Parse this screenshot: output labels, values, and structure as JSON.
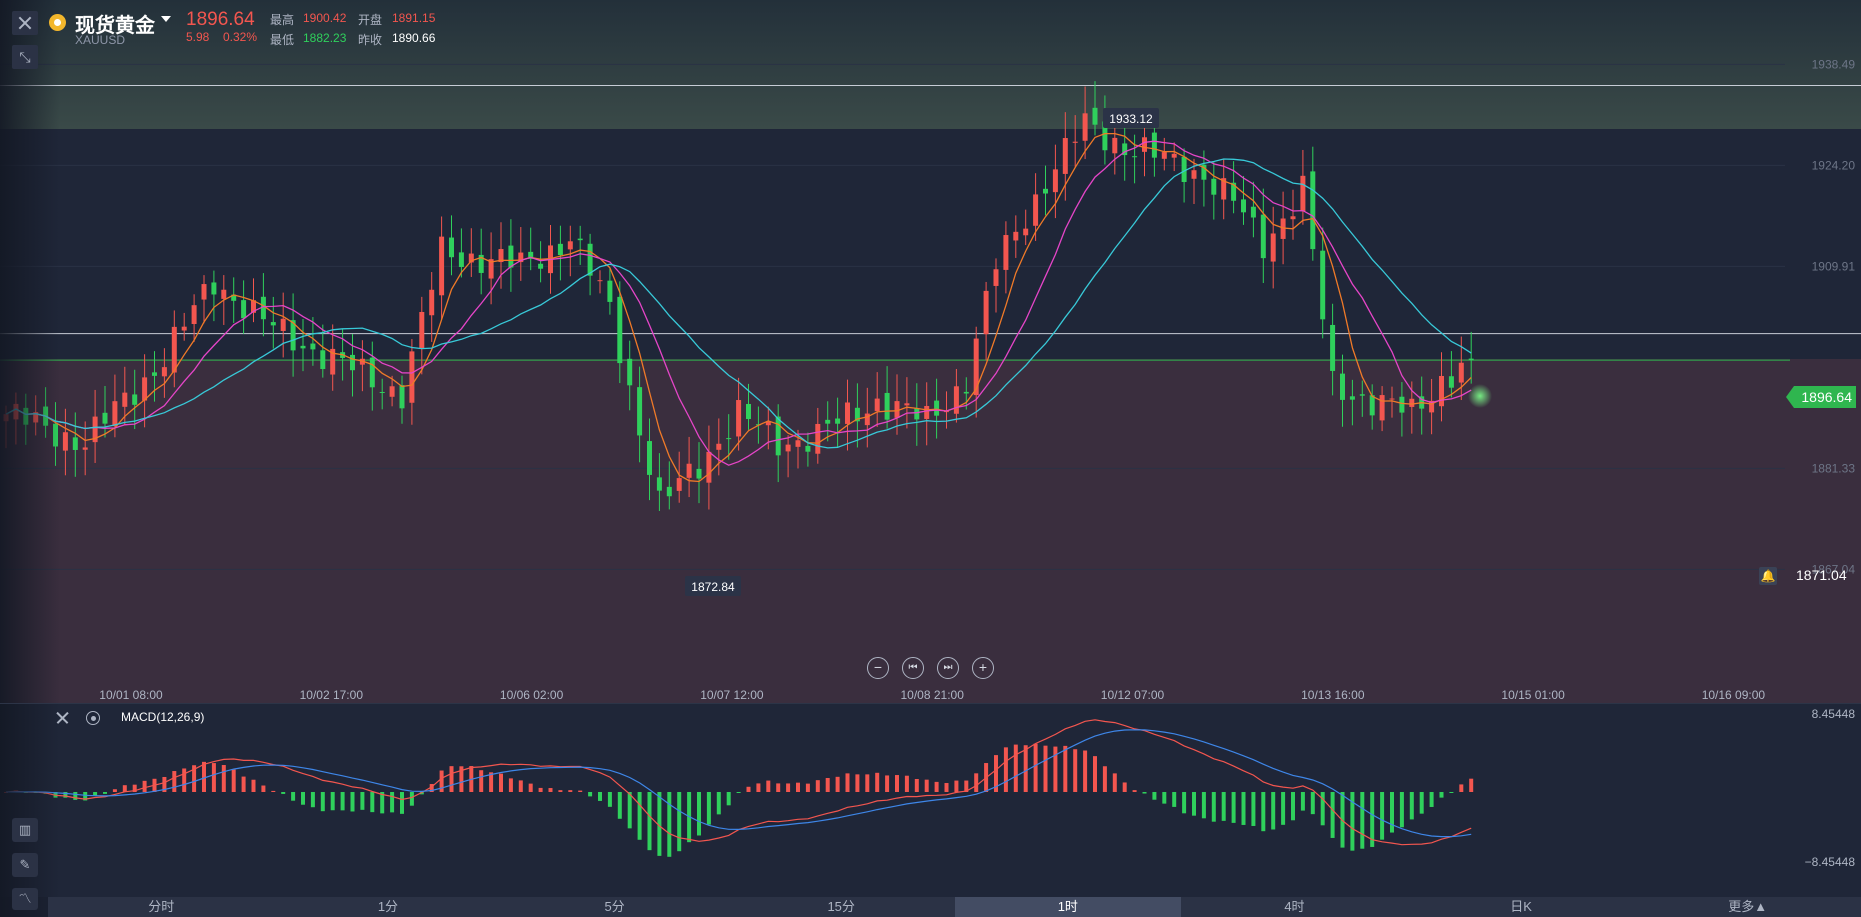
{
  "header": {
    "name": "现货黄金",
    "symbol": "XAUUSD",
    "price": "1896.64",
    "change": "5.98",
    "change_pct": "0.32%",
    "high_label": "最高",
    "high": "1900.42",
    "open_label": "开盘",
    "open": "1891.15",
    "low_label": "最低",
    "low": "1882.23",
    "prev_close_label": "昨收",
    "prev_close": "1890.66"
  },
  "colors": {
    "up": "#f3564f",
    "down": "#2fd05c",
    "ma5": "#f07a28",
    "ma10": "#e545c8",
    "ma20": "#38c9d8",
    "dif": "#f3564f",
    "dea": "#3e86e8",
    "current_price": "#2fb64f"
  },
  "icons": [
    "close-icon",
    "shrink-icon",
    "gold-coin-icon",
    "caret-down-icon",
    "zoom-out-icon",
    "prev-icon",
    "next-icon",
    "zoom-in-icon",
    "close-icon",
    "gear-icon",
    "indicator-icon",
    "pencil-icon",
    "chart-line-icon",
    "bell-icon"
  ],
  "tags": {
    "current_price": "1896.64",
    "alert_price": "1871.04",
    "max_label": "1933.12",
    "min_label": "1872.84"
  },
  "macd": {
    "title": "MACD(12,26,9)",
    "top": "8.45448",
    "bottom": "−8.45448"
  },
  "tabs": [
    {
      "label": "分时",
      "active": false
    },
    {
      "label": "1分",
      "active": false
    },
    {
      "label": "5分",
      "active": false
    },
    {
      "label": "15分",
      "active": false
    },
    {
      "label": "1时",
      "active": true
    },
    {
      "label": "4时",
      "active": false
    },
    {
      "label": "日K",
      "active": false
    },
    {
      "label": "更多▲",
      "active": false
    }
  ],
  "chart_data": {
    "type": "candlestick",
    "y_ticks": [
      "1938.49",
      "1924.20",
      "1909.91",
      "1881.33",
      "1867.04"
    ],
    "ylim": [
      1862.7,
      1946.9
    ],
    "x_ticks": [
      "10/01 08:00",
      "10/02 17:00",
      "10/06 02:00",
      "10/07 12:00",
      "10/08 21:00",
      "10/12 07:00",
      "10/13 16:00",
      "10/15 01:00",
      "10/16 09:00"
    ],
    "anchors": [
      {
        "bar": 0,
        "close": 1889.0
      },
      {
        "bar": 8,
        "close": 1885.0
      },
      {
        "bar": 16,
        "close": 1897.0
      },
      {
        "bar": 21,
        "close": 1908.0
      },
      {
        "bar": 26,
        "close": 1902.0
      },
      {
        "bar": 34,
        "close": 1896.0
      },
      {
        "bar": 40,
        "close": 1892.0
      },
      {
        "bar": 44,
        "close": 1912.0
      },
      {
        "bar": 52,
        "close": 1910.0
      },
      {
        "bar": 57,
        "close": 1914.0
      },
      {
        "bar": 61,
        "close": 1904.0
      },
      {
        "bar": 66,
        "close": 1876.0
      },
      {
        "bar": 70,
        "close": 1882.0
      },
      {
        "bar": 74,
        "close": 1889.0
      },
      {
        "bar": 78,
        "close": 1885.0
      },
      {
        "bar": 82,
        "close": 1886.0
      },
      {
        "bar": 88,
        "close": 1891.0
      },
      {
        "bar": 93,
        "close": 1888.0
      },
      {
        "bar": 97,
        "close": 1894.0
      },
      {
        "bar": 100,
        "close": 1910.0
      },
      {
        "bar": 105,
        "close": 1922.0
      },
      {
        "bar": 109,
        "close": 1930.0
      },
      {
        "bar": 113,
        "close": 1927.0
      },
      {
        "bar": 117,
        "close": 1925.0
      },
      {
        "bar": 121,
        "close": 1923.0
      },
      {
        "bar": 124,
        "close": 1919.0
      },
      {
        "bar": 127,
        "close": 1913.0
      },
      {
        "bar": 131,
        "close": 1921.0
      },
      {
        "bar": 134,
        "close": 1893.0
      },
      {
        "bar": 138,
        "close": 1891.0
      },
      {
        "bar": 142,
        "close": 1889.0
      },
      {
        "bar": 145,
        "close": 1894.0
      },
      {
        "bar": 148,
        "close": 1896.6
      }
    ],
    "bars_total": 149,
    "extremes": {
      "high": 1933.12,
      "low": 1872.84
    },
    "current": 1896.64,
    "reference_lines": [
      1935.5,
      1900.4
    ],
    "macd_range": [
      -8.45448,
      8.45448
    ]
  }
}
